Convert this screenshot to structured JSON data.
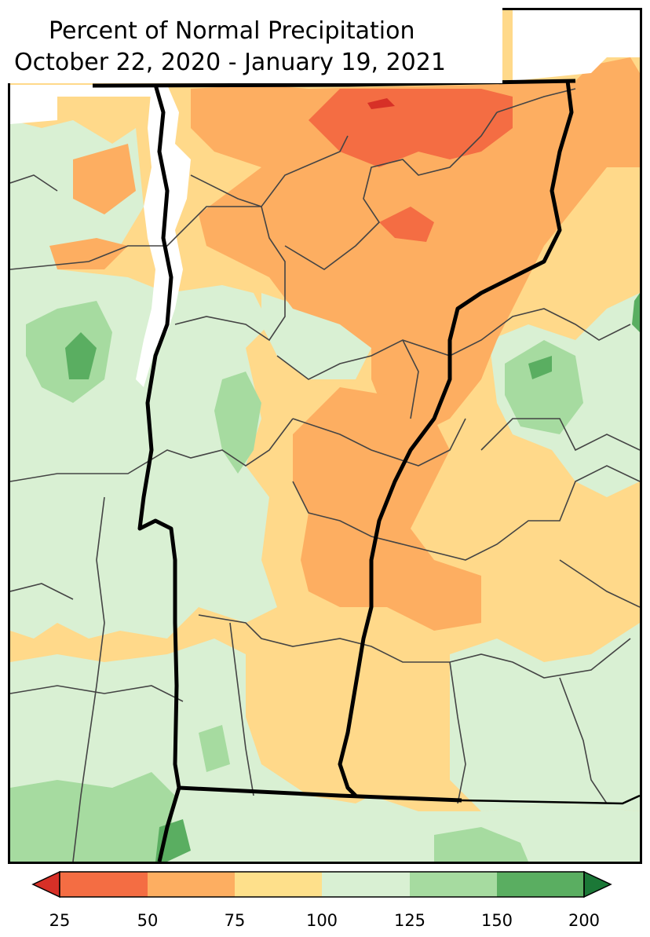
{
  "title": {
    "line1": "Percent of Normal Precipitation",
    "line2": "October 22, 2020 - January 19, 2021"
  },
  "colors": {
    "below_25": "#d73027",
    "c25_50": "#f46d43",
    "c50_75": "#fdae61",
    "c75_100": "#fee08b",
    "c100_125": "#d9f0d3",
    "c125_150": "#a6dba0",
    "c150_200": "#5aae61",
    "above_200": "#1b7837"
  },
  "legend": {
    "ticks": [
      "25",
      "50",
      "75",
      "100",
      "125",
      "150",
      "200"
    ]
  }
}
